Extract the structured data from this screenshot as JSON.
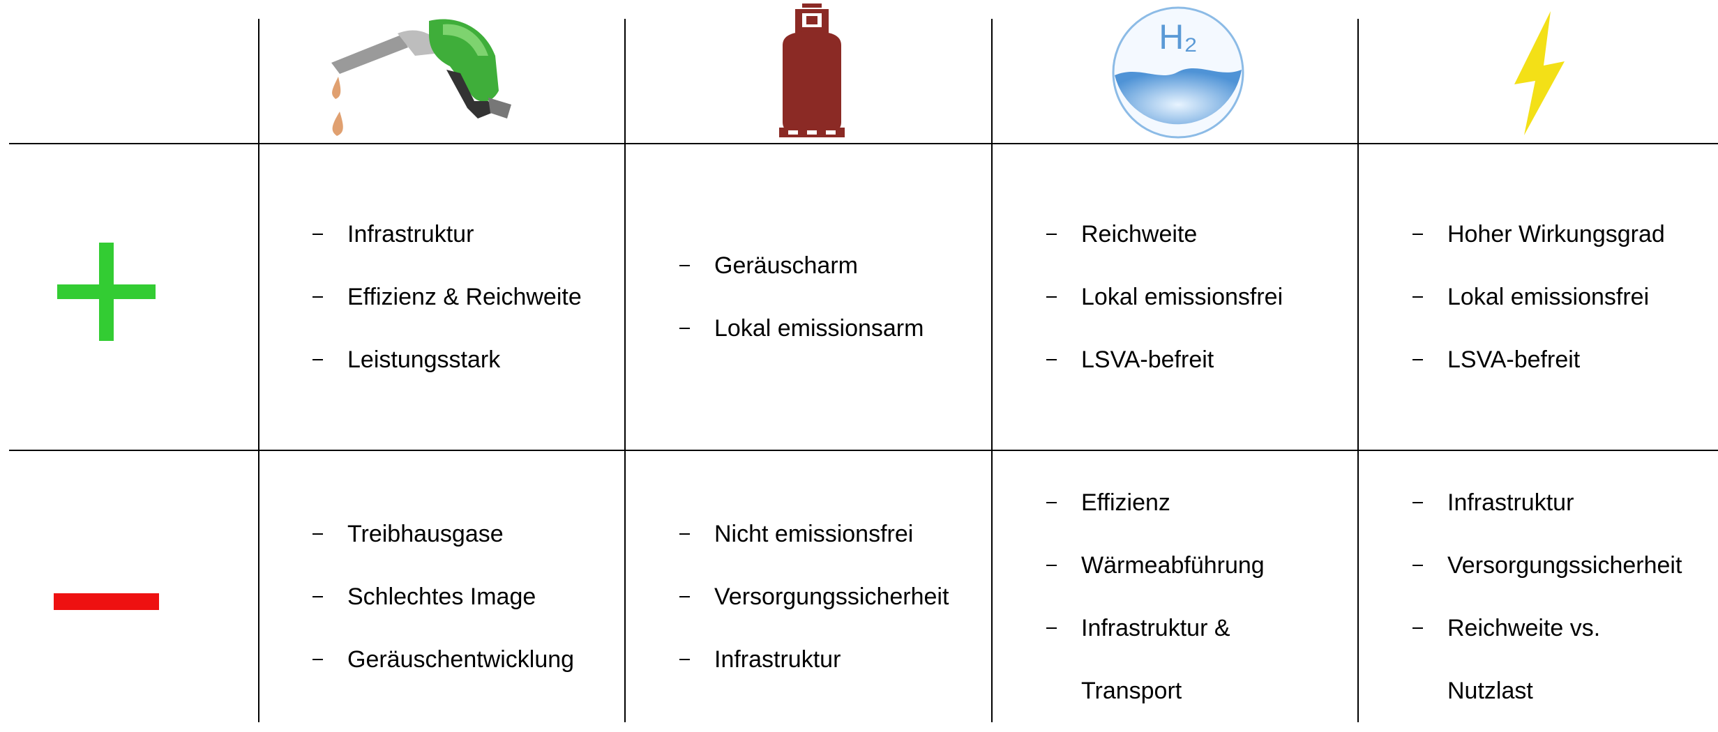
{
  "hydrogen_icon_text": "H₂",
  "table": {
    "rows": [
      {
        "cells": [
          [
            "Infrastruktur",
            "Effizienz & Reichweite",
            "Leistungsstark"
          ],
          [
            "Geräuscharm",
            "Lokal emissionsarm"
          ],
          [
            "Reichweite",
            "Lokal emissionsfrei",
            "LSVA-befreit"
          ],
          [
            "Hoher Wirkungsgrad",
            "Lokal emissionsfrei",
            "LSVA-befreit"
          ]
        ]
      },
      {
        "cells": [
          [
            "Treibhausgase",
            "Schlechtes Image",
            "Geräuschentwicklung"
          ],
          [
            "Nicht emissionsfrei",
            "Versorgungssicherheit",
            "Infrastruktur"
          ],
          [
            "Effizienz",
            "Wärmeabführung",
            "Infrastruktur &\nTransport"
          ],
          [
            "Infrastruktur",
            "Versorgungssicherheit",
            "Reichweite vs.\nNutzlast"
          ]
        ]
      }
    ]
  }
}
